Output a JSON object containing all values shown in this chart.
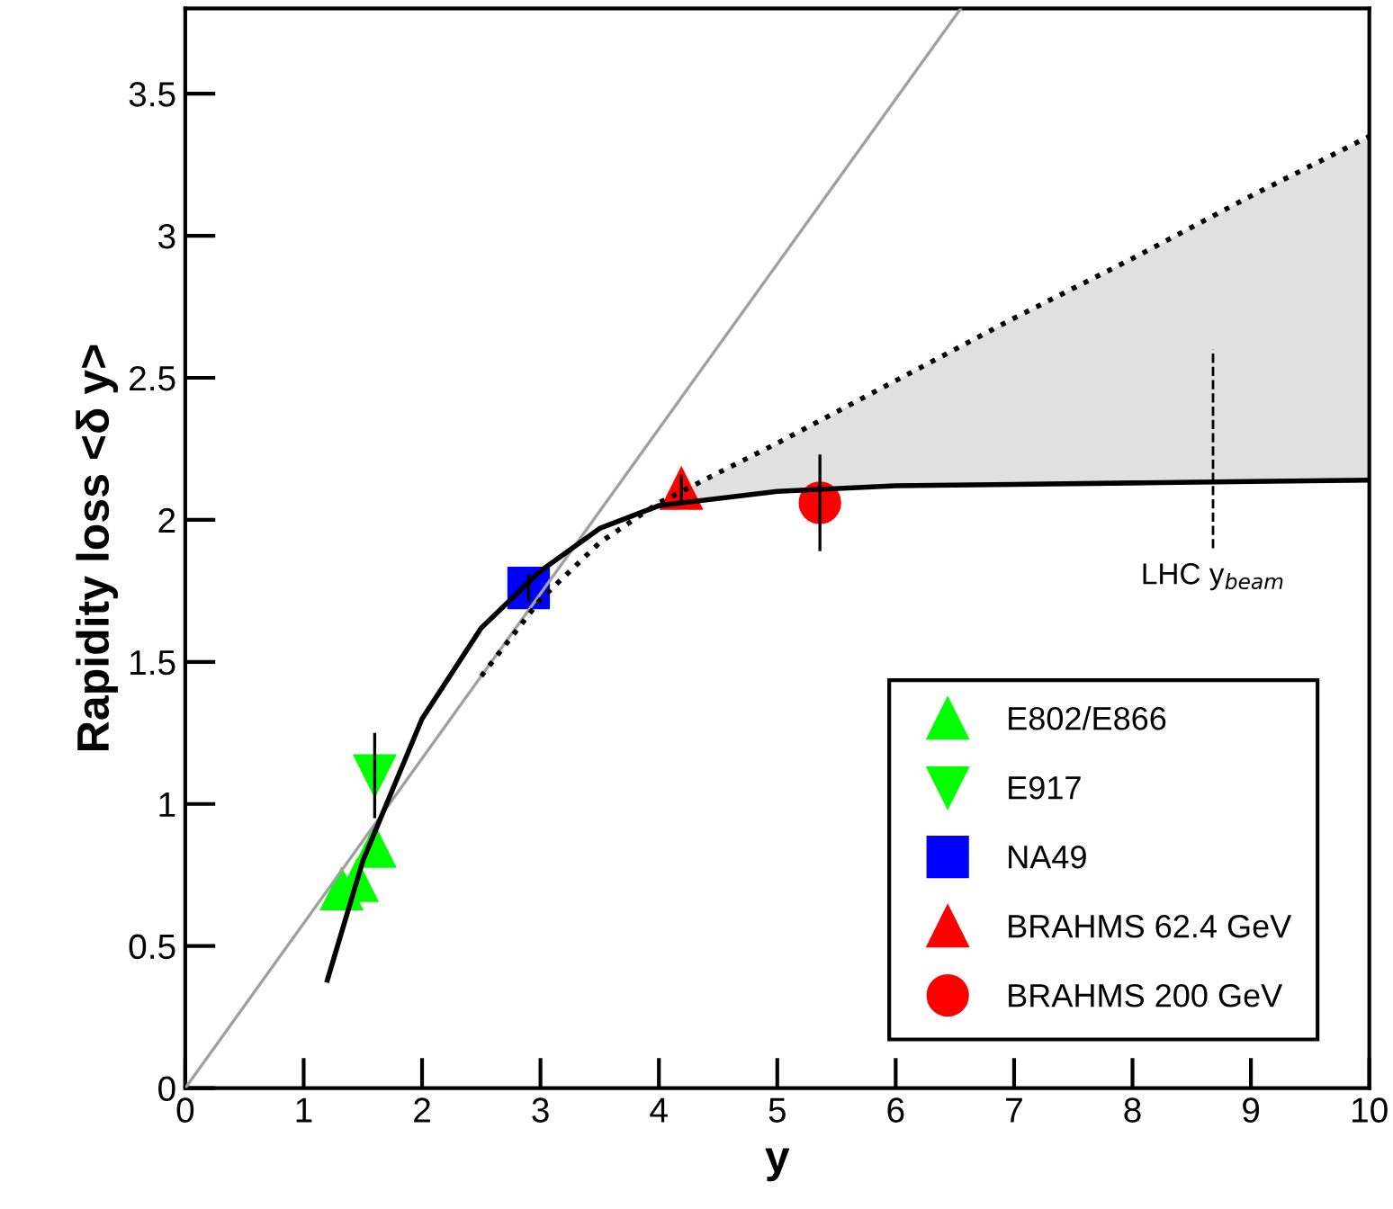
{
  "chart_data": {
    "type": "scatter",
    "xlabel": "y",
    "ylabel": "Rapidity loss <δ y>",
    "xlim": [
      0,
      10
    ],
    "ylim": [
      0,
      3.8
    ],
    "xticks": [
      0,
      1,
      2,
      3,
      4,
      5,
      6,
      7,
      8,
      9,
      10
    ],
    "yticks": [
      0,
      0.5,
      1,
      1.5,
      2,
      2.5,
      3,
      3.5
    ],
    "grid": false,
    "legend": "bottom right",
    "series": [
      {
        "type": "line",
        "color": "#a0a0a0",
        "line_style": "solid",
        "marker": "none",
        "x": [
          0,
          6.55
        ],
        "values": [
          0,
          3.8
        ]
      },
      {
        "type": "line",
        "color": "#000000",
        "line_style": "dotted",
        "marker": "none",
        "x": [
          2.5,
          3,
          3.5,
          4,
          5,
          6,
          7,
          8,
          9,
          10
        ],
        "values": [
          1.45,
          1.72,
          1.92,
          2.06,
          2.27,
          2.49,
          2.71,
          2.92,
          3.14,
          3.35
        ],
        "lower": [
          null,
          null,
          null,
          2.05,
          2.1,
          2.12,
          2.125,
          2.13,
          2.135,
          2.14
        ],
        "upper": [
          null,
          null,
          null,
          2.06,
          2.27,
          2.49,
          2.71,
          2.92,
          3.14,
          3.35
        ]
      },
      {
        "type": "line",
        "color": "#000000",
        "line_style": "solid",
        "marker": "none",
        "x": [
          1.2,
          1.5,
          2,
          2.5,
          3,
          3.5,
          4,
          5,
          6,
          7,
          8,
          9,
          10
        ],
        "values": [
          0.38,
          0.8,
          1.3,
          1.62,
          1.82,
          1.97,
          2.05,
          2.1,
          2.12,
          2.125,
          2.13,
          2.135,
          2.14
        ]
      },
      {
        "name": "E802/E866",
        "color": "#00ff00",
        "marker": "triangle",
        "x": [
          1.32,
          1.45,
          1.6
        ],
        "values": [
          0.7,
          0.73,
          0.85
        ]
      },
      {
        "name": "E917",
        "color": "#00ff00",
        "marker": "triangle_down",
        "x": [
          1.6
        ],
        "values": [
          1.1
        ],
        "errors": [
          0.15
        ]
      },
      {
        "name": "NA49",
        "color": "#0000ff",
        "marker": "square",
        "x": [
          2.9
        ],
        "values": [
          1.76
        ],
        "errors": [
          0.05
        ]
      },
      {
        "name": "BRAHMS 62.4 GeV",
        "color": "#ff0000",
        "marker": "triangle",
        "x": [
          4.19
        ],
        "values": [
          2.11
        ],
        "errors": [
          0.05
        ]
      },
      {
        "name": "BRAHMS 200 GeV",
        "color": "#ff0000",
        "marker": "circle",
        "x": [
          5.36
        ],
        "values": [
          2.06
        ],
        "errors": [
          0.17
        ]
      }
    ],
    "ref_lines": [
      {
        "axis": "x",
        "value": 8.68,
        "label": "LHC y$_{beam}$",
        "line_style": "dashed",
        "color": "#000000"
      }
    ]
  }
}
